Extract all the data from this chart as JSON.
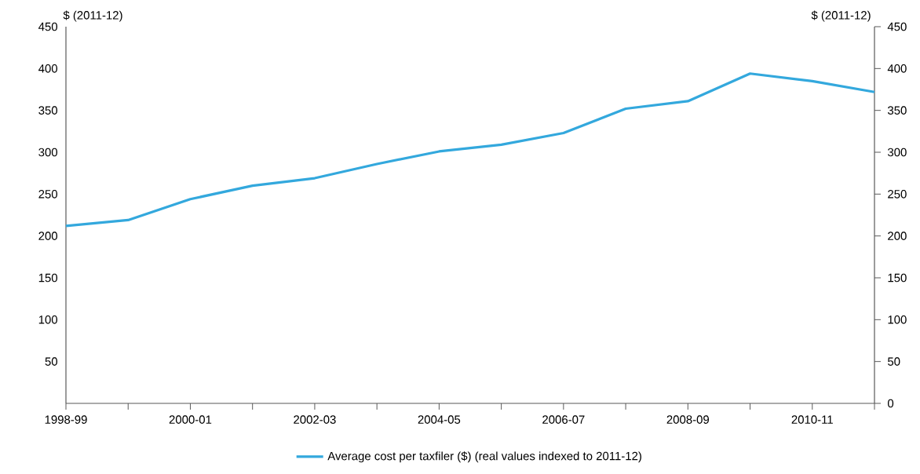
{
  "chart_data": {
    "type": "line",
    "categories": [
      "1998-99",
      null,
      "2000-01",
      null,
      "2002-03",
      null,
      "2004-05",
      null,
      "2006-07",
      null,
      "2008-09",
      null,
      "2010-11",
      null
    ],
    "series": [
      {
        "name": "Average cost per taxfiler ($) (real values indexed to 2011-12)",
        "color": "#33a8dd",
        "values": [
          212,
          219,
          244,
          260,
          269,
          286,
          301,
          309,
          323,
          352,
          361,
          394,
          385,
          372
        ]
      }
    ],
    "ylabel": "$ (2011-12)",
    "y2label": "$ (2011-12)",
    "ylim": [
      0,
      450
    ],
    "yticks": [
      0,
      50,
      100,
      150,
      200,
      250,
      300,
      350,
      400,
      450
    ],
    "y2lim": [
      0,
      450
    ],
    "y2ticks": [
      50,
      100,
      150,
      200,
      250,
      300,
      350,
      400,
      450
    ],
    "grid": false,
    "legend": "bottom"
  }
}
